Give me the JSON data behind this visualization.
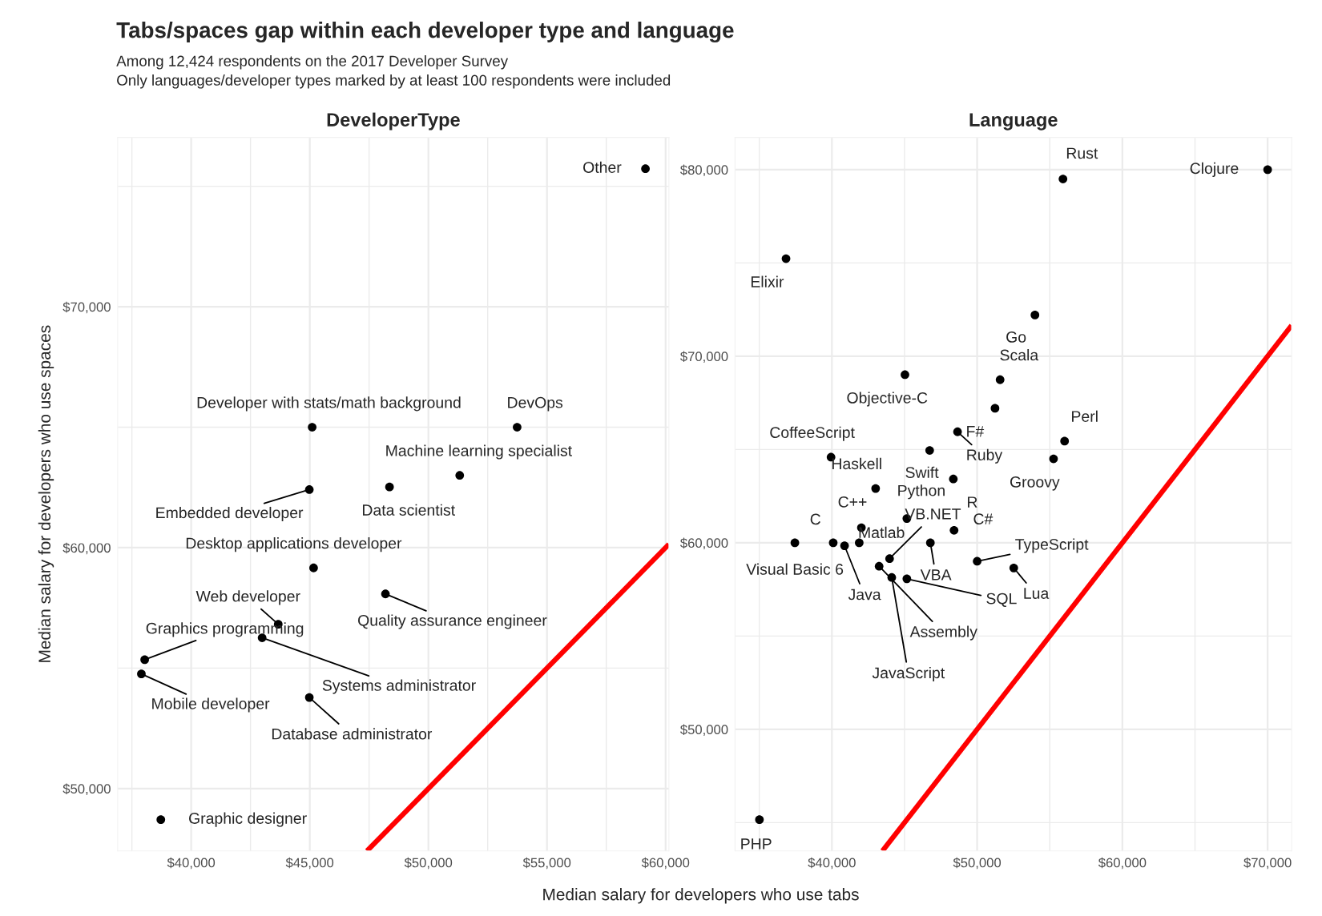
{
  "chart_data": [
    {
      "type": "scatter",
      "title": "Tabs/spaces gap within each developer type and language",
      "subtitle": "DeveloperType",
      "xlabel": "Median salary for developers who use tabs",
      "ylabel": "Median salary for developers who use spaces",
      "xlim": [
        36900,
        60140
      ],
      "ylim": [
        47410,
        77030
      ],
      "xticks": [
        {
          "value": 37500,
          "label": null
        },
        {
          "value": 40000,
          "label": "$40,000"
        },
        {
          "value": 42500,
          "label": null
        },
        {
          "value": 45000,
          "label": "$45,000"
        },
        {
          "value": 47500,
          "label": null
        },
        {
          "value": 50000,
          "label": "$50,000"
        },
        {
          "value": 52500,
          "label": null
        },
        {
          "value": 55000,
          "label": "$55,000"
        },
        {
          "value": 57500,
          "label": null
        },
        {
          "value": 60000,
          "label": "$60,000"
        }
      ],
      "yticks": [
        {
          "value": 50000,
          "label": "$50,000"
        },
        {
          "value": 55000,
          "label": null
        },
        {
          "value": 60000,
          "label": "$60,000"
        },
        {
          "value": 65000,
          "label": null
        },
        {
          "value": 70000,
          "label": "$70,000"
        },
        {
          "value": 75000,
          "label": null
        }
      ],
      "grid": true,
      "series": [
        {
          "color": "#000000",
          "marker": "circle",
          "x": [
            59150,
            45100,
            53740,
            51320,
            48360,
            44980,
            45160,
            48190,
            43670,
            42990,
            38040,
            37900,
            44980,
            38720
          ],
          "values": [
            75730,
            65000,
            65000,
            63000,
            62520,
            62410,
            59160,
            58080,
            56820,
            56260,
            55350,
            54760,
            53780,
            48710
          ]
        },
        {
          "type": "line",
          "color": "#ff0000",
          "x": [
            47410,
            60140
          ],
          "values": [
            47410,
            60140
          ]
        }
      ],
      "annotations": [
        "Among 12,424 respondents on the 2017 Developer Survey",
        "Only languages/developer types marked by at least 100 respondents were included",
        {
          "text": "Other",
          "x": 59150,
          "y": 75730
        },
        {
          "text": "Developer with stats/math background",
          "x": 45100,
          "y": 65000
        },
        {
          "text": "DevOps",
          "x": 53740,
          "y": 65000
        },
        {
          "text": "Machine learning specialist",
          "x": 51320,
          "y": 63000
        },
        {
          "text": "Data scientist",
          "x": 48360,
          "y": 62520
        },
        {
          "text": "Embedded developer",
          "x": 44980,
          "y": 62410
        },
        {
          "text": "Desktop applications developer",
          "x": 45160,
          "y": 59160
        },
        {
          "text": "Quality assurance engineer",
          "x": 48190,
          "y": 58080
        },
        {
          "text": "Web developer",
          "x": 43670,
          "y": 56820
        },
        {
          "text": "Systems administrator",
          "x": 42990,
          "y": 56260
        },
        {
          "text": "Graphics programming",
          "x": 38040,
          "y": 55350
        },
        {
          "text": "Mobile developer",
          "x": 37900,
          "y": 54760
        },
        {
          "text": "Database administrator",
          "x": 44980,
          "y": 53780
        },
        {
          "text": "Graphic designer",
          "x": 38720,
          "y": 48710
        }
      ]
    },
    {
      "type": "scatter",
      "subtitle": "Language",
      "xlim": [
        33330,
        71650
      ],
      "ylim": [
        43480,
        81730
      ],
      "xticks": [
        {
          "value": 35000,
          "label": null
        },
        {
          "value": 40000,
          "label": "$40,000"
        },
        {
          "value": 45000,
          "label": null
        },
        {
          "value": 50000,
          "label": "$50,000"
        },
        {
          "value": 55000,
          "label": null
        },
        {
          "value": 60000,
          "label": "$60,000"
        },
        {
          "value": 65000,
          "label": null
        },
        {
          "value": 70000,
          "label": "$70,000"
        }
      ],
      "yticks": [
        {
          "value": 45000,
          "label": null
        },
        {
          "value": 50000,
          "label": "$50,000"
        },
        {
          "value": 55000,
          "label": null
        },
        {
          "value": 60000,
          "label": "$60,000"
        },
        {
          "value": 65000,
          "label": null
        },
        {
          "value": 70000,
          "label": "$70,000"
        },
        {
          "value": 75000,
          "label": null
        },
        {
          "value": 80000,
          "label": "$80,000"
        }
      ],
      "grid": true,
      "series": [
        {
          "color": "#000000",
          "marker": "circle",
          "x": [
            55910,
            70000,
            36840,
            53980,
            51580,
            45030,
            51230,
            48650,
            56020,
            39940,
            46730,
            55260,
            48360,
            43010,
            45160,
            42030,
            48410,
            40090,
            37450,
            41880,
            40870,
            43970,
            46780,
            43250,
            44120,
            45160,
            50000,
            52520,
            35010
          ],
          "values": [
            79500,
            80000,
            75230,
            72210,
            68740,
            69010,
            67210,
            65950,
            65450,
            64590,
            64950,
            64500,
            63420,
            62910,
            61300,
            60810,
            60670,
            60000,
            60000,
            60000,
            59840,
            59150,
            60000,
            58740,
            58140,
            58070,
            59010,
            58650,
            45160
          ]
        },
        {
          "type": "line",
          "color": "#ff0000",
          "x": [
            43480,
            71650
          ],
          "values": [
            43480,
            71650
          ]
        }
      ],
      "annotations": [
        {
          "text": "Rust",
          "x": 55910,
          "y": 79500
        },
        {
          "text": "Clojure",
          "x": 70000,
          "y": 80000
        },
        {
          "text": "Elixir",
          "x": 36840,
          "y": 75230
        },
        {
          "text": "Go",
          "x": 53980,
          "y": 72210
        },
        {
          "text": "Scala",
          "x": 51580,
          "y": 68740
        },
        {
          "text": "Objective-C",
          "x": 45030,
          "y": 69010
        },
        {
          "text": "F#",
          "x": 51230,
          "y": 67210
        },
        {
          "text": "Ruby",
          "x": 48650,
          "y": 65950
        },
        {
          "text": "Perl",
          "x": 56020,
          "y": 65450
        },
        {
          "text": "CoffeeScript",
          "x": 39940,
          "y": 64590
        },
        {
          "text": "Swift",
          "x": 46730,
          "y": 64950
        },
        {
          "text": "Groovy",
          "x": 55260,
          "y": 64500
        },
        {
          "text": "R",
          "x": 48360,
          "y": 63420
        },
        {
          "text": "Haskell",
          "x": 43010,
          "y": 62910
        },
        {
          "text": "Python",
          "x": 45160,
          "y": 61300
        },
        {
          "text": "C++",
          "x": 42030,
          "y": 60810
        },
        {
          "text": "C#",
          "x": 48410,
          "y": 60670
        },
        {
          "text": "C",
          "x": 40090,
          "y": 60000
        },
        {
          "text": "Visual Basic 6",
          "x": 37450,
          "y": 60000
        },
        {
          "text": "Matlab",
          "x": 41880,
          "y": 60000
        },
        {
          "text": "Java",
          "x": 40870,
          "y": 59840
        },
        {
          "text": "VB.NET",
          "x": 43970,
          "y": 59150
        },
        {
          "text": "VBA",
          "x": 46780,
          "y": 60000
        },
        {
          "text": "Assembly",
          "x": 43250,
          "y": 58740
        },
        {
          "text": "JavaScript",
          "x": 44120,
          "y": 58140
        },
        {
          "text": "SQL",
          "x": 45160,
          "y": 58070
        },
        {
          "text": "TypeScript",
          "x": 50000,
          "y": 59010
        },
        {
          "text": "Lua",
          "x": 52520,
          "y": 58650
        },
        {
          "text": "PHP",
          "x": 35010,
          "y": 45160
        }
      ]
    }
  ]
}
